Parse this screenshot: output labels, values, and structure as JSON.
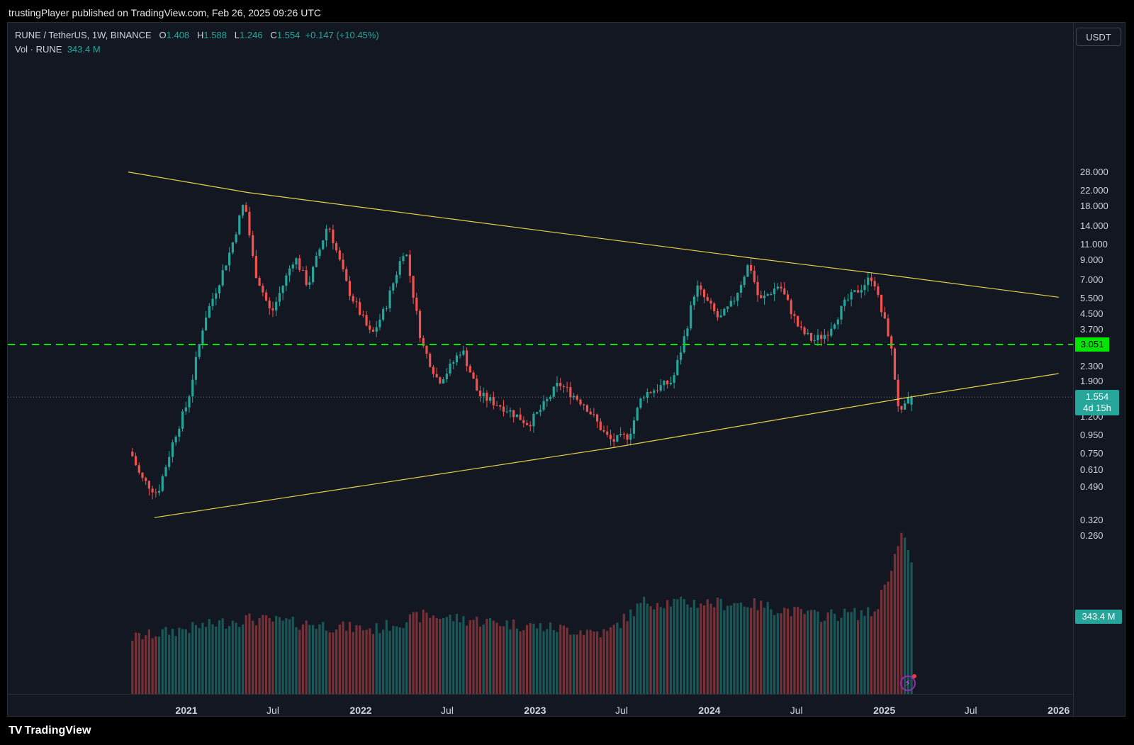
{
  "header": {
    "publish_line": "trustingPlayer published on TradingView.com, Feb 26, 2025 09:26 UTC"
  },
  "legend": {
    "symbol": "RUNE / TetherUS, 1W, BINANCE",
    "o_label": "O",
    "o_value": "1.408",
    "h_label": "H",
    "h_value": "1.588",
    "l_label": "L",
    "l_value": "1.246",
    "c_label": "C",
    "c_value": "1.554",
    "change": "+0.147 (+10.45%)",
    "vol_label": "Vol · RUNE",
    "vol_value": "343.4 M"
  },
  "currency": "USDT",
  "badges": {
    "level": "3.051",
    "price": "1.554",
    "countdown": "4d 15h",
    "volume": "343.4 M"
  },
  "brand": {
    "mark": "TV",
    "name": "TradingView"
  },
  "icons": {
    "alert": "lightning-alert-icon"
  },
  "colors": {
    "up": "#26a69a",
    "down": "#ef5350",
    "trendline": "#e6d34a",
    "level_line": "#00e600",
    "background": "#131722"
  },
  "chart_data": {
    "type": "candlestick",
    "title": "RUNE / TetherUS, 1W, BINANCE",
    "y_scale": "log",
    "y_ticks": [
      "28.000",
      "22.000",
      "18.000",
      "14.000",
      "11.000",
      "9.000",
      "7.000",
      "5.500",
      "4.500",
      "3.700",
      "2.900",
      "2.300",
      "1.900",
      "1.200",
      "0.950",
      "0.750",
      "0.610",
      "0.490",
      "0.320",
      "0.260"
    ],
    "x_ticks": [
      "2021",
      "Jul",
      "2022",
      "Jul",
      "2023",
      "Jul",
      "2024",
      "Jul",
      "2025",
      "Jul",
      "2026"
    ],
    "last": {
      "open": 1.408,
      "high": 1.588,
      "low": 1.246,
      "close": 1.554,
      "change": 0.147,
      "change_pct": 10.45,
      "volume_m": 343.4
    },
    "horizontal_level": 3.051,
    "trendlines": [
      {
        "name": "descending resistance",
        "points": [
          [
            "2020-09-01",
            28.0
          ],
          [
            "2021-05-10",
            21.5
          ],
          [
            "2024-03-25",
            9.3
          ],
          [
            "2024-12-16",
            7.6
          ],
          [
            "2026-01-01",
            5.6
          ]
        ]
      },
      {
        "name": "ascending support",
        "points": [
          [
            "2020-10-26",
            0.33
          ],
          [
            "2023-06-12",
            0.81
          ],
          [
            "2025-02-24",
            1.554
          ],
          [
            "2026-01-01",
            2.1
          ]
        ]
      }
    ],
    "price_path": [
      [
        "2020-09-07",
        0.77
      ],
      [
        "2020-09-28",
        0.55
      ],
      [
        "2020-11-02",
        0.45
      ],
      [
        "2020-12-07",
        0.92
      ],
      [
        "2021-01-04",
        1.45
      ],
      [
        "2021-02-08",
        4.2
      ],
      [
        "2021-03-08",
        6.5
      ],
      [
        "2021-04-05",
        10.5
      ],
      [
        "2021-05-03",
        19.5
      ],
      [
        "2021-05-24",
        8.0
      ],
      [
        "2021-06-28",
        4.5
      ],
      [
        "2021-08-16",
        9.5
      ],
      [
        "2021-09-13",
        6.5
      ],
      [
        "2021-10-25",
        14.5
      ],
      [
        "2021-12-06",
        6.2
      ],
      [
        "2022-01-24",
        3.4
      ],
      [
        "2022-02-21",
        4.8
      ],
      [
        "2022-04-04",
        10.8
      ],
      [
        "2022-05-09",
        3.1
      ],
      [
        "2022-06-13",
        1.9
      ],
      [
        "2022-07-04",
        2.2
      ],
      [
        "2022-08-01",
        2.9
      ],
      [
        "2022-09-05",
        1.6
      ],
      [
        "2022-10-31",
        1.35
      ],
      [
        "2022-12-19",
        1.1
      ],
      [
        "2023-01-16",
        1.35
      ],
      [
        "2023-02-20",
        1.85
      ],
      [
        "2023-04-17",
        1.4
      ],
      [
        "2023-05-29",
        0.95
      ],
      [
        "2023-06-12",
        0.88
      ],
      [
        "2023-07-17",
        0.95
      ],
      [
        "2023-08-14",
        1.6
      ],
      [
        "2023-10-16",
        1.9
      ],
      [
        "2023-11-13",
        3.6
      ],
      [
        "2023-12-04",
        6.5
      ],
      [
        "2024-01-22",
        4.2
      ],
      [
        "2024-02-19",
        5.2
      ],
      [
        "2024-03-25",
        8.8
      ],
      [
        "2024-04-15",
        5.3
      ],
      [
        "2024-05-27",
        6.6
      ],
      [
        "2024-07-08",
        3.7
      ],
      [
        "2024-08-05",
        3.2
      ],
      [
        "2024-09-02",
        3.5
      ],
      [
        "2024-10-14",
        5.3
      ],
      [
        "2024-12-09",
        7.4
      ],
      [
        "2024-12-23",
        5.0
      ],
      [
        "2025-01-13",
        3.3
      ],
      [
        "2025-02-03",
        1.2
      ],
      [
        "2025-02-17",
        1.408
      ],
      [
        "2025-02-24",
        1.554
      ]
    ],
    "volume_path": [
      [
        "2020-09-07",
        12
      ],
      [
        "2021-05-03",
        30
      ],
      [
        "2022-01-24",
        18
      ],
      [
        "2022-05-09",
        35
      ],
      [
        "2023-05-29",
        15
      ],
      [
        "2023-08-14",
        65
      ],
      [
        "2024-03-25",
        60
      ],
      [
        "2024-08-05",
        35
      ],
      [
        "2024-12-09",
        40
      ],
      [
        "2025-02-03",
        1200
      ],
      [
        "2025-02-17",
        800
      ],
      [
        "2025-02-24",
        343.4
      ]
    ]
  }
}
